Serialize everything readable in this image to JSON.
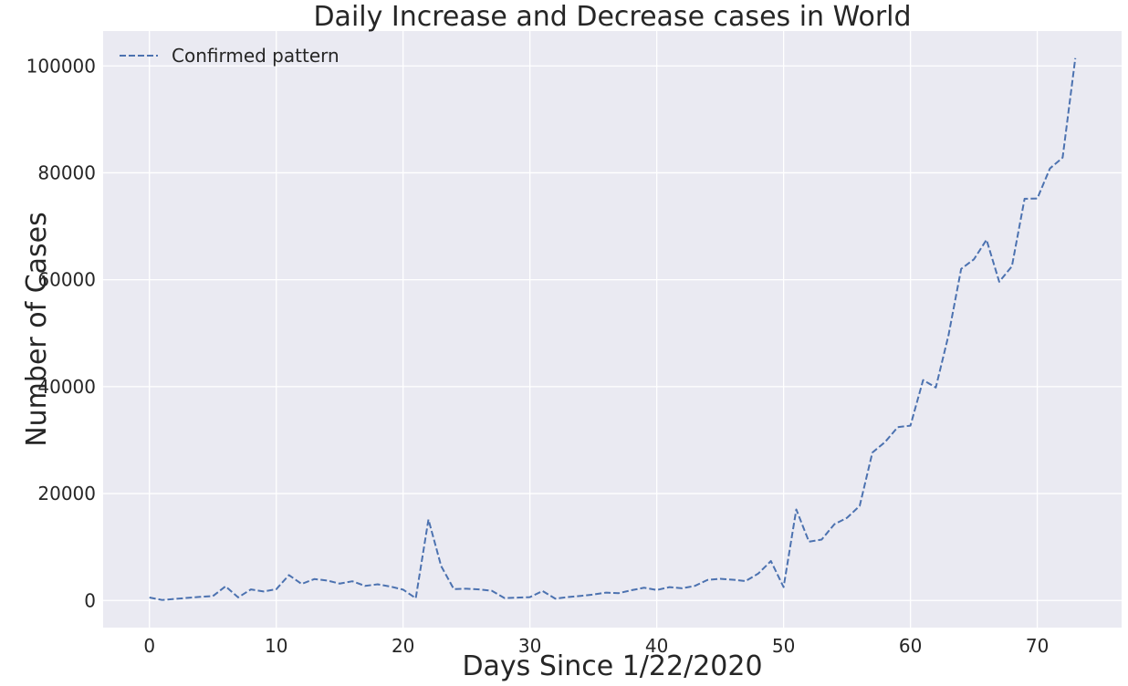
{
  "chart_data": {
    "type": "line",
    "title": "Daily Increase and Decrease cases in World",
    "xlabel": "Days Since 1/22/2020",
    "ylabel": "Number of Cases",
    "xlim": [
      -3.65,
      76.65
    ],
    "ylim": [
      -5073,
      106528
    ],
    "xticks": [
      0,
      10,
      20,
      30,
      40,
      50,
      60,
      70
    ],
    "yticks": [
      0,
      20000,
      40000,
      60000,
      80000,
      100000
    ],
    "grid": true,
    "legend_position": "top-left",
    "series": [
      {
        "name": "Confirmed pattern",
        "color": "#4c72b0",
        "line_style": "dashed",
        "x": [
          0,
          1,
          2,
          3,
          4,
          5,
          6,
          7,
          8,
          9,
          10,
          11,
          12,
          13,
          14,
          15,
          16,
          17,
          18,
          19,
          20,
          21,
          22,
          23,
          24,
          25,
          26,
          27,
          28,
          29,
          30,
          31,
          32,
          33,
          34,
          35,
          36,
          37,
          38,
          39,
          40,
          41,
          42,
          43,
          44,
          45,
          46,
          47,
          48,
          49,
          50,
          51,
          52,
          53,
          54,
          55,
          56,
          57,
          58,
          59,
          60,
          61,
          62,
          63,
          64,
          65,
          66,
          67,
          68,
          69,
          70,
          71,
          72,
          73
        ],
        "y": [
          555,
          99,
          287,
          493,
          683,
          809,
          2651,
          588,
          2068,
          1693,
          2111,
          4749,
          3094,
          4011,
          3743,
          3159,
          3597,
          2729,
          3030,
          2609,
          2035,
          423,
          15153,
          6451,
          2133,
          2210,
          2065,
          1809,
          455,
          527,
          630,
          1777,
          345,
          640,
          856,
          1118,
          1473,
          1378,
          1917,
          2388,
          1963,
          2501,
          2287,
          2729,
          3844,
          4058,
          3889,
          3627,
          5030,
          7385,
          2502,
          17029,
          10999,
          11396,
          14261,
          15469,
          17698,
          27676,
          29642,
          32430,
          32710,
          41236,
          39834,
          49594,
          62035,
          63805,
          67476,
          59622,
          62509,
          75141,
          75194,
          80826,
          82842,
          101445
        ]
      }
    ]
  }
}
